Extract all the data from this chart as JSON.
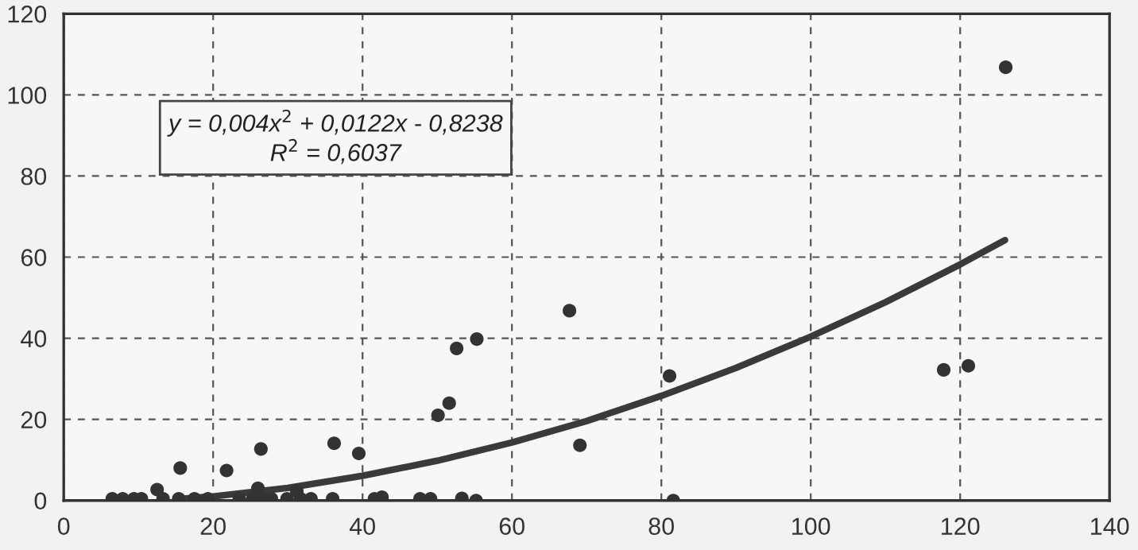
{
  "chart_data": {
    "type": "scatter",
    "series": [
      {
        "color": "#333333",
        "marker": "circle",
        "x": [
          126.1,
          117.8,
          121.1,
          67.7,
          55.3,
          52.6,
          51.6,
          50.1,
          69.1,
          81.1,
          81.6,
          39.5,
          42.6,
          53.3,
          55.2,
          15.6,
          21.8,
          26.4,
          36.2,
          12.5,
          26.0,
          31.2,
          6.5,
          7.9,
          9.4,
          10.4,
          13.3,
          15.4,
          17.5,
          19.3,
          23.5,
          25.3,
          26.7,
          27.8,
          29.9,
          31.7,
          33.1,
          36.0,
          41.6,
          47.7,
          49.1
        ],
        "values": [
          106.8,
          32.2,
          33.2,
          46.8,
          39.8,
          37.5,
          24.0,
          21.0,
          13.6,
          30.7,
          0,
          11.6,
          0.8,
          0.5,
          0,
          8.0,
          7.4,
          12.7,
          14.1,
          2.7,
          3.0,
          2.3,
          0.4,
          0.4,
          0.4,
          0.4,
          0.4,
          0.4,
          0.4,
          0.4,
          0.4,
          0.4,
          0.4,
          0.4,
          0.4,
          0.4,
          0.4,
          0.4,
          0.4,
          0.4,
          0.4
        ]
      },
      {
        "type": "line",
        "color": "#3a3a3a",
        "x": [
          15,
          20,
          30,
          40,
          50,
          60,
          70,
          80,
          90,
          100,
          110,
          120,
          126
        ],
        "values": [
          0.3,
          1.0,
          3.1,
          6.1,
          9.8,
          14.3,
          19.6,
          25.8,
          32.7,
          40.4,
          48.9,
          58.2,
          64.2
        ]
      }
    ],
    "xlim": [
      0,
      140
    ],
    "xticks": [
      0,
      20,
      40,
      60,
      80,
      100,
      120,
      140
    ],
    "ylim": [
      0,
      120
    ],
    "yticks": [
      0,
      20,
      40,
      60,
      80,
      100,
      120
    ],
    "grid": true,
    "annotations": [
      "y = 0,004x$^{2}$ + 0,0122x - 0,8238",
      "R$^{2}$ = 0,6037"
    ]
  }
}
